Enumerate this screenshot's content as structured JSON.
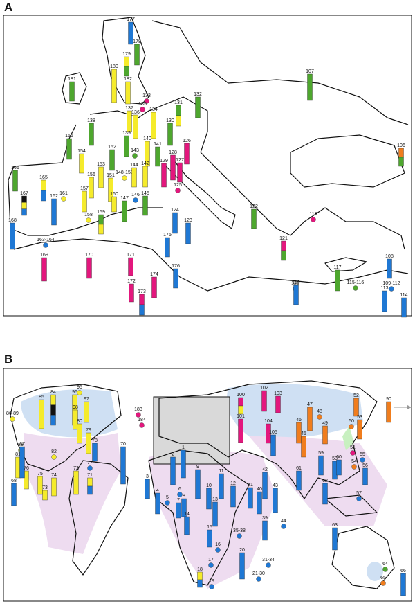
{
  "panels": [
    {
      "label": "A",
      "sites": [
        "177",
        "178",
        "179",
        "180",
        "181",
        "182",
        "107",
        "133",
        "135",
        "131",
        "132",
        "137",
        "136",
        "134",
        "138",
        "139",
        "130",
        "155",
        "154",
        "152",
        "140",
        "141",
        "143",
        "128",
        "126",
        "106",
        "166",
        "165",
        "153",
        "156",
        "148-150",
        "144",
        "142",
        "129",
        "127",
        "125",
        "151",
        "161",
        "157",
        "167",
        "160",
        "159",
        "158",
        "146",
        "147",
        "145",
        "162",
        "168",
        "163-164",
        "124",
        "123",
        "122",
        "118",
        "175",
        "121",
        "169",
        "170",
        "171",
        "172",
        "173",
        "174",
        "176",
        "117",
        "115-116",
        "120",
        "119",
        "108",
        "109-112",
        "113",
        "114"
      ]
    },
    {
      "label": "B",
      "sites": [
        "95",
        "85",
        "96",
        "84",
        "97",
        "86-89",
        "98",
        "80",
        "79",
        "83",
        "82",
        "78",
        "81",
        "77",
        "76",
        "75",
        "74",
        "73",
        "72",
        "71",
        "70",
        "67",
        "68",
        "183",
        "184",
        "100",
        "102",
        "103",
        "101",
        "104",
        "105",
        "47",
        "46",
        "48",
        "52",
        "53",
        "50",
        "49",
        "45",
        "51",
        "90",
        "54",
        "56",
        "55",
        "59",
        "58",
        "61",
        "62",
        "60",
        "57",
        "1",
        "2",
        "3",
        "4",
        "5",
        "6",
        "7",
        "8",
        "9",
        "10",
        "11",
        "12",
        "13",
        "14",
        "15",
        "16",
        "17",
        "18",
        "19",
        "20",
        "21-30",
        "31-34",
        "35-38",
        "39",
        "40",
        "41",
        "42",
        "43",
        "44",
        "63",
        "64",
        "65",
        "66"
      ]
    }
  ]
}
